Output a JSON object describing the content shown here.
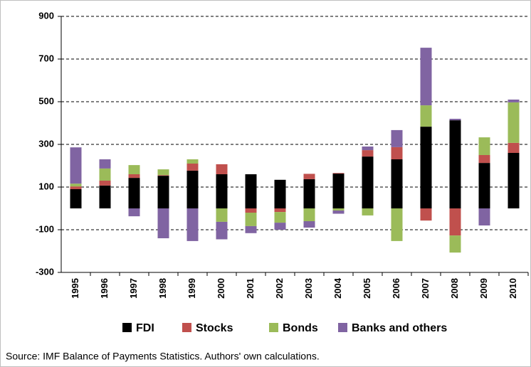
{
  "chart_data": {
    "type": "stacked-bar",
    "categories": [
      "1995",
      "1996",
      "1997",
      "1998",
      "1999",
      "2000",
      "2001",
      "2002",
      "2003",
      "2004",
      "2005",
      "2006",
      "2007",
      "2008",
      "2009",
      "2010"
    ],
    "series": [
      {
        "name": "FDI",
        "color": "#000000",
        "values": [
          90,
          107,
          143,
          153,
          177,
          160,
          160,
          134,
          137,
          163,
          243,
          230,
          383,
          413,
          213,
          260
        ]
      },
      {
        "name": "Stocks",
        "color": "#c0504d",
        "values": [
          13,
          23,
          17,
          3,
          33,
          47,
          -20,
          -17,
          25,
          3,
          30,
          57,
          -57,
          -127,
          37,
          47
        ]
      },
      {
        "name": "Bonds",
        "color": "#9bbb59",
        "values": [
          13,
          57,
          43,
          27,
          20,
          -63,
          -63,
          -50,
          -60,
          -10,
          -33,
          -153,
          100,
          -80,
          83,
          190
        ]
      },
      {
        "name": "Banks and others",
        "color": "#8064a2",
        "values": [
          170,
          43,
          -37,
          -140,
          -153,
          -82,
          -33,
          -33,
          -30,
          -15,
          17,
          80,
          270,
          7,
          -80,
          13
        ]
      }
    ],
    "ylim": [
      -300,
      900
    ],
    "yticks": [
      -300,
      -100,
      100,
      300,
      500,
      700,
      900
    ],
    "grid": true,
    "note": "Source: IMF Balance of Payments Statistics. Authors' own calculations."
  }
}
